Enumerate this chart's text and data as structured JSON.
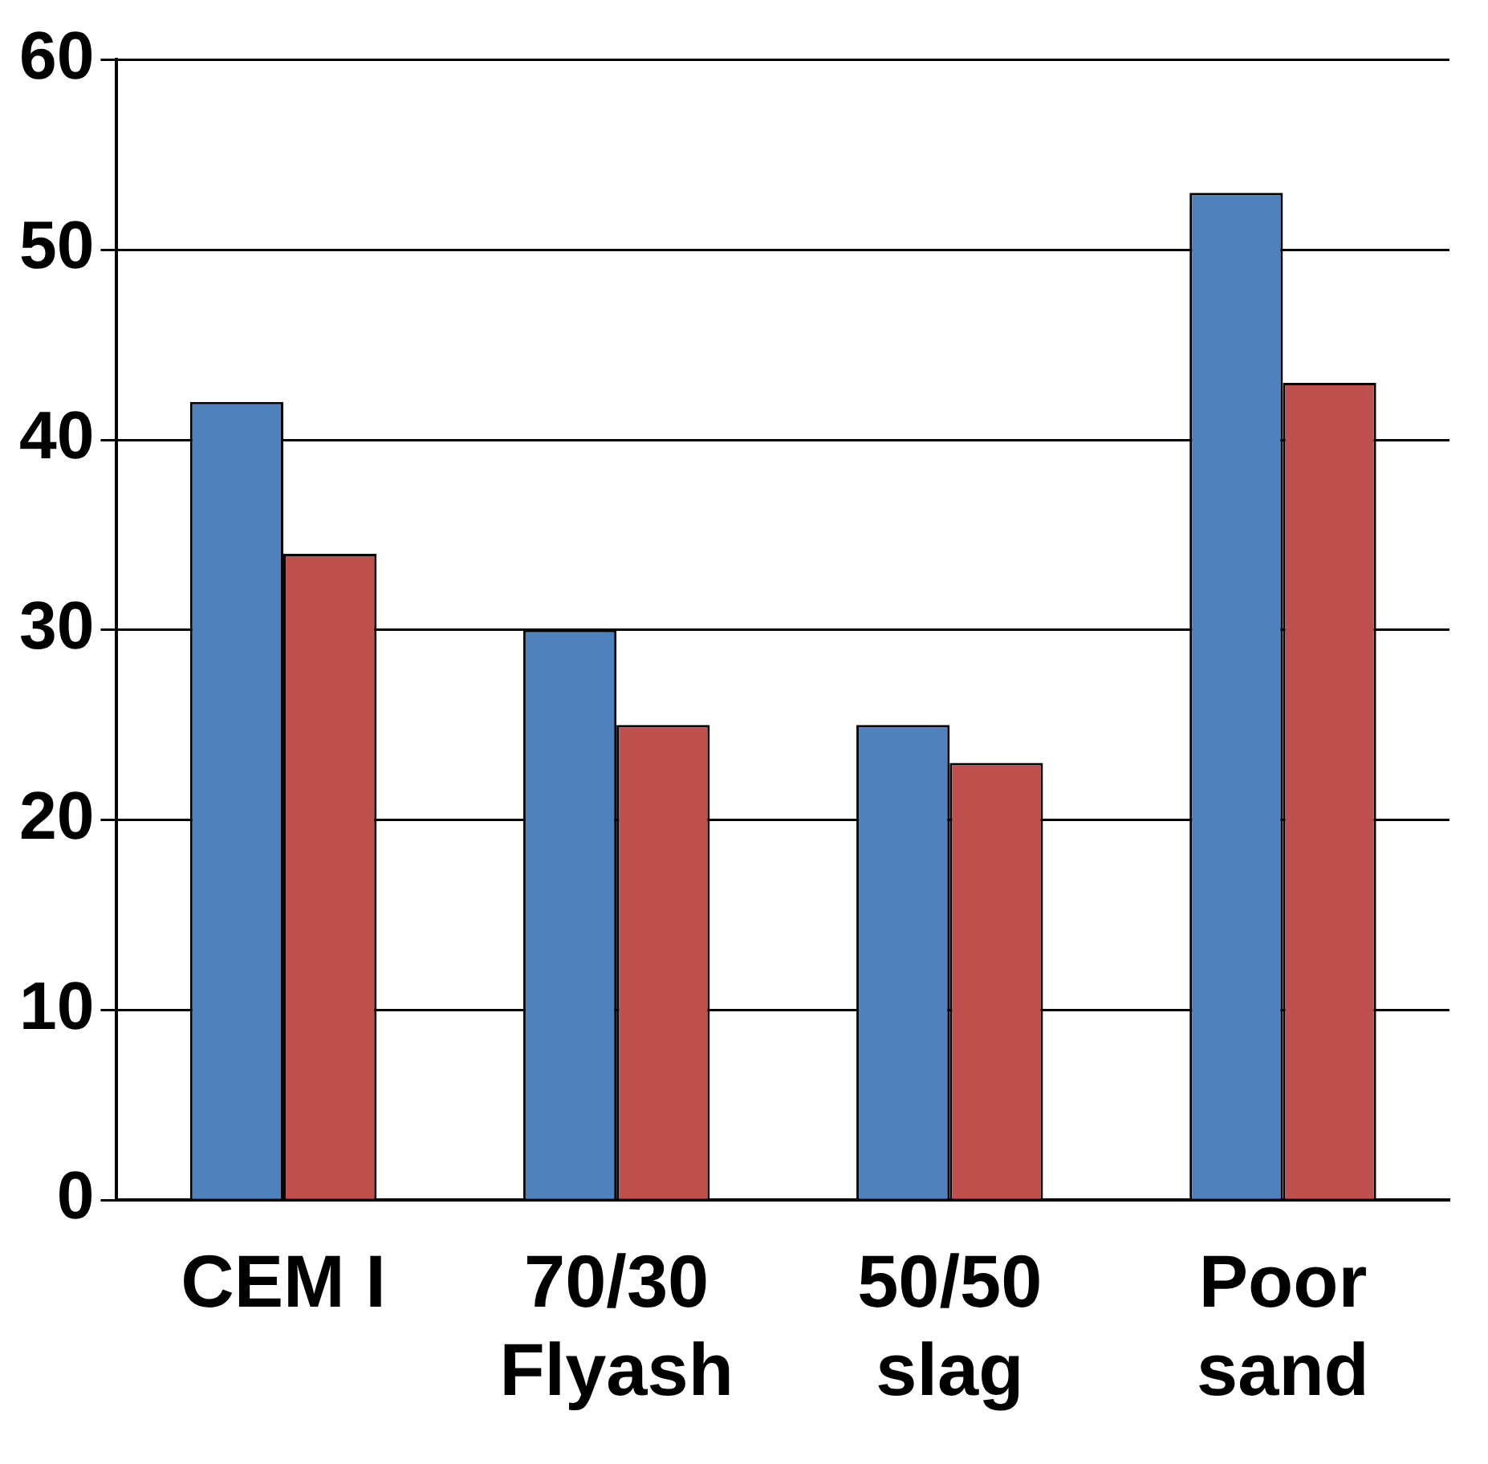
{
  "chart_data": {
    "type": "bar",
    "categories": [
      "CEM I",
      "70/30\nFlyash",
      "50/50\nslag",
      "Poor\nsand"
    ],
    "series": [
      {
        "color": "#4f81bd",
        "values": [
          42,
          30,
          25,
          53
        ]
      },
      {
        "color": "#c0504d",
        "values": [
          34,
          25,
          23,
          43
        ]
      }
    ],
    "ylim": [
      0,
      60
    ],
    "yticks": [
      0,
      10,
      20,
      30,
      40,
      50,
      60
    ],
    "grid": "y",
    "legend": false
  }
}
